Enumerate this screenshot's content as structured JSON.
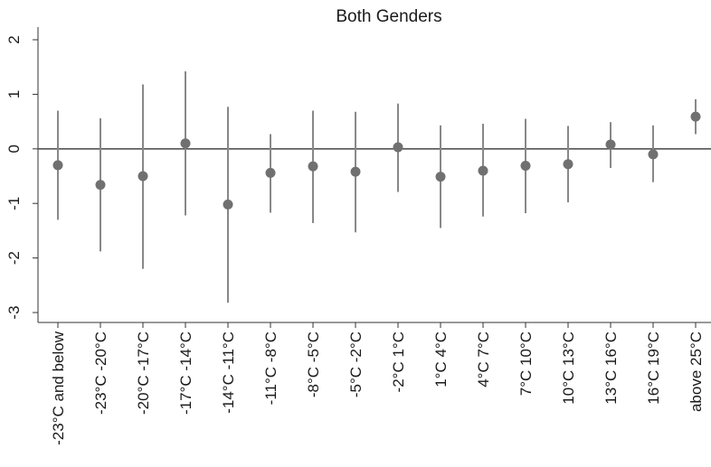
{
  "chart_data": {
    "type": "scatter",
    "title": "Both Genders",
    "xlabel": "",
    "ylabel": "",
    "ylim": [
      -3.3,
      2.3
    ],
    "yticks": [
      2,
      1,
      0,
      -1,
      -2,
      -3
    ],
    "ytick_labels": [
      "2",
      "1",
      "0",
      "-1",
      "-2",
      "-3"
    ],
    "zero_line": true,
    "grid": false,
    "categories": [
      "-23°C and below",
      "-23°C -20°C",
      "-20°C -17°C",
      "-17°C -14°C",
      "-14°C -11°C",
      "-11°C -8°C",
      "-8°C -5°C",
      "-5°C -2°C",
      "-2°C 1°C",
      "1°C 4°C",
      "4°C 7°C",
      "7°C 10°C",
      "10°C 13°C",
      "13°C 16°C",
      "16°C 19°C",
      "above 25°C"
    ],
    "series": [
      {
        "estimate": [
          -0.3,
          -0.66,
          -0.5,
          0.1,
          -1.02,
          -0.44,
          -0.32,
          -0.42,
          0.03,
          -0.51,
          -0.4,
          -0.31,
          -0.28,
          0.08,
          -0.1,
          0.59
        ],
        "ci_low": [
          -1.3,
          -1.88,
          -2.2,
          -1.22,
          -2.82,
          -1.17,
          -1.36,
          -1.53,
          -0.79,
          -1.45,
          -1.24,
          -1.18,
          -0.98,
          -0.35,
          -0.61,
          0.27
        ],
        "ci_high": [
          0.7,
          0.56,
          1.18,
          1.42,
          0.77,
          0.27,
          0.7,
          0.68,
          0.83,
          0.43,
          0.46,
          0.55,
          0.42,
          0.49,
          0.43,
          0.91
        ]
      }
    ],
    "colors": {
      "point": "#707070",
      "ci": "#888888",
      "axis": "#333333",
      "zero_line": "#555555"
    }
  }
}
